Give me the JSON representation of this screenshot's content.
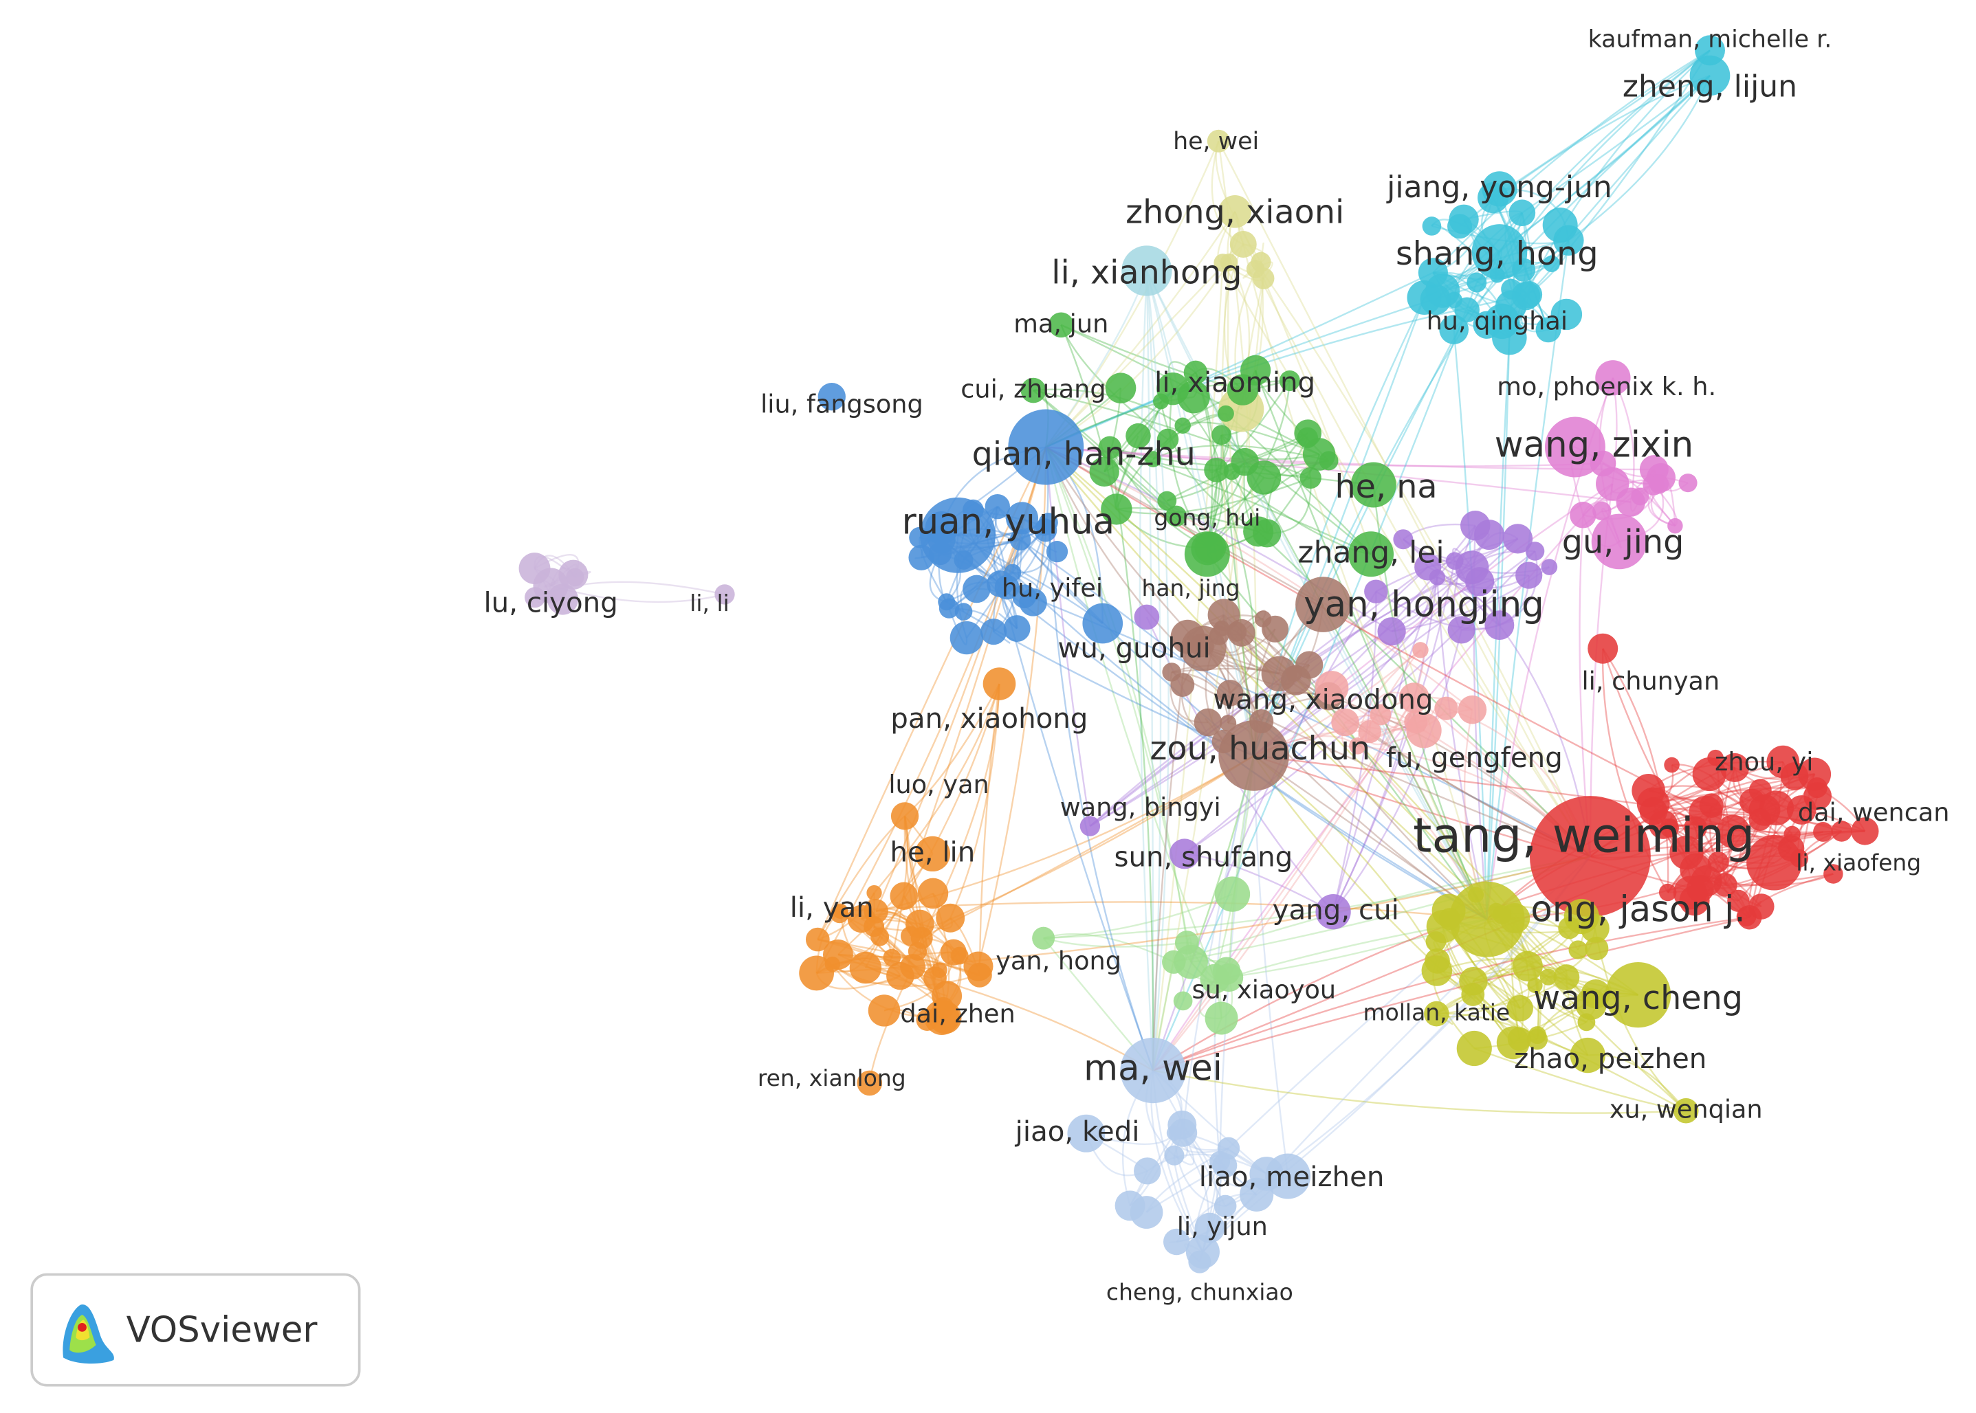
{
  "nodes": [
    {
      "label": "kaufman, michelle r."
    },
    {
      "label": "zheng, lijun"
    },
    {
      "label": "he, wei"
    },
    {
      "label": "zhong, xiaoni"
    },
    {
      "label": "jiang, yong-jun"
    },
    {
      "label": "shang, hong"
    },
    {
      "label": "li, xianhong"
    },
    {
      "label": "hu, qinghai"
    },
    {
      "label": "ma, jun"
    },
    {
      "label": "li, xiaoming"
    },
    {
      "label": "cui, zhuang"
    },
    {
      "label": "liu, fangsong"
    },
    {
      "label": "mo, phoenix k. h."
    },
    {
      "label": "qian, han-zhu"
    },
    {
      "label": "wang, zixin"
    },
    {
      "label": "he, na"
    },
    {
      "label": "ruan, yuhua"
    },
    {
      "label": "gong, hui"
    },
    {
      "label": "gu, jing"
    },
    {
      "label": "zhang, lei"
    },
    {
      "label": "hu, yifei"
    },
    {
      "label": "han, jing"
    },
    {
      "label": "lu, ciyong"
    },
    {
      "label": "li, li"
    },
    {
      "label": "yan, hongjing"
    },
    {
      "label": "wu, guohui"
    },
    {
      "label": "li, chunyan"
    },
    {
      "label": "wang, xiaodong"
    },
    {
      "label": "pan, xiaohong"
    },
    {
      "label": "zou, huachun"
    },
    {
      "label": "fu, gengfeng"
    },
    {
      "label": "zhou, yi"
    },
    {
      "label": "luo, yan"
    },
    {
      "label": "wang, bingyi"
    },
    {
      "label": "dai, wencan"
    },
    {
      "label": "tang, weiming"
    },
    {
      "label": "he, lin"
    },
    {
      "label": "sun, shufang"
    },
    {
      "label": "li, xiaofeng"
    },
    {
      "label": "li, yan"
    },
    {
      "label": "yang, cui"
    },
    {
      "label": "ong, jason j."
    },
    {
      "label": "yan, hong"
    },
    {
      "label": "su, xiaoyou"
    },
    {
      "label": "wang, cheng"
    },
    {
      "label": "mollan, katie"
    },
    {
      "label": "dai, zhen"
    },
    {
      "label": "zhao, peizhen"
    },
    {
      "label": "ma, wei"
    },
    {
      "label": "ren, xianlong"
    },
    {
      "label": "xu, wenqian"
    },
    {
      "label": "jiao, kedi"
    },
    {
      "label": "liao, meizhen"
    },
    {
      "label": "li, yijun"
    },
    {
      "label": "cheng, chunxiao"
    }
  ],
  "logo": {
    "text": "VOSviewer"
  }
}
